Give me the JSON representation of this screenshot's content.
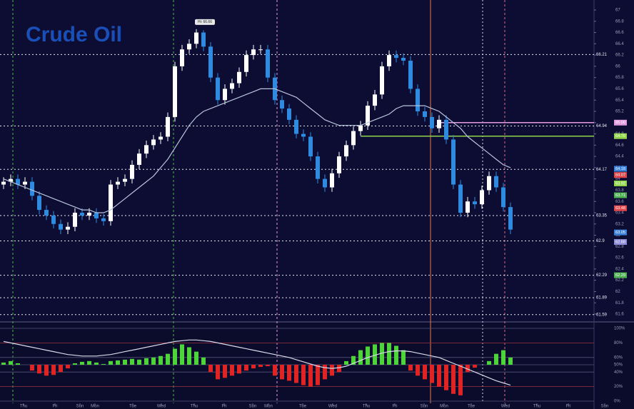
{
  "chart_data": [
    {
      "type": "candlestick",
      "title": "Crude Oil",
      "annotation": "Hi: 66.66",
      "xlim": [
        -0.5,
        88.3
      ],
      "ylim": [
        61.6,
        67
      ],
      "yticks": [
        61.6,
        61.8,
        62,
        62.2,
        62.4,
        62.6,
        62.8,
        63,
        63.2,
        63.4,
        63.6,
        63.8,
        64,
        64.2,
        64.4,
        64.6,
        64.8,
        65,
        65.2,
        65.4,
        65.6,
        65.8,
        66,
        66.2,
        66.4,
        66.6,
        66.8,
        67
      ],
      "levels": [
        66.21,
        64.94,
        64.17,
        63.35,
        62.9,
        62.29,
        61.89,
        61.59
      ],
      "lines": [
        {
          "value": 65.0,
          "color": "#e39be0",
          "from": 61
        },
        {
          "value": 64.76,
          "color": "#8fd44a",
          "from": 50
        }
      ],
      "price_tags": [
        {
          "value": 65.0,
          "label": "65.00",
          "color": "#e39be0"
        },
        {
          "value": 64.76,
          "label": "64.76",
          "color": "#8fd44a"
        },
        {
          "value": 64.18,
          "label": "64.18",
          "color": "#3a7fd8"
        },
        {
          "value": 64.07,
          "label": "64.07",
          "color": "#e0464a"
        },
        {
          "value": 63.92,
          "label": "63.92",
          "color": "#8fd44a"
        },
        {
          "value": 63.71,
          "label": "63.71",
          "color": "#4caf50"
        },
        {
          "value": 63.48,
          "label": "63.48",
          "color": "#e0464a"
        },
        {
          "value": 63.05,
          "label": "63.05",
          "color": "#3a7fd8"
        },
        {
          "value": 62.88,
          "label": "62.88",
          "color": "#8c8cd8"
        },
        {
          "value": 62.29,
          "label": "62.29",
          "color": "#4caf50"
        }
      ],
      "up_color": "#ffffff",
      "down_color": "#2f8be0",
      "ma_color": "#b8c4dc",
      "open": [
        63.9,
        63.95,
        64.0,
        63.9,
        63.95,
        63.7,
        63.45,
        63.35,
        63.2,
        63.1,
        63.15,
        63.4,
        63.35,
        63.4,
        63.3,
        63.25,
        63.9,
        63.95,
        64.0,
        64.25,
        64.45,
        64.6,
        64.7,
        64.75,
        65.1,
        66.0,
        66.3,
        66.4,
        66.6,
        66.35,
        65.8,
        65.4,
        65.6,
        65.7,
        65.9,
        66.2,
        66.3,
        66.3,
        65.8,
        65.4,
        65.25,
        65.05,
        64.8,
        64.75,
        64.4,
        64.0,
        63.85,
        64.1,
        64.4,
        64.6,
        64.85,
        64.95,
        65.3,
        65.5,
        66.0,
        66.2,
        66.15,
        66.1,
        65.6,
        65.2,
        65.1,
        64.9,
        65.05,
        64.7,
        63.9,
        63.4,
        63.6,
        63.55,
        63.8,
        64.05,
        63.85,
        63.5
      ],
      "high": [
        64.03,
        64.08,
        64.08,
        64.03,
        64.03,
        63.78,
        63.53,
        63.43,
        63.28,
        63.23,
        63.48,
        63.48,
        63.48,
        63.48,
        63.38,
        63.98,
        64.03,
        64.08,
        64.33,
        64.53,
        64.68,
        64.78,
        64.83,
        65.18,
        66.08,
        66.38,
        66.48,
        66.66,
        66.64,
        66.43,
        65.88,
        65.68,
        65.78,
        65.98,
        66.28,
        66.38,
        66.38,
        66.38,
        65.88,
        65.48,
        65.33,
        65.13,
        64.88,
        64.83,
        64.48,
        64.08,
        64.18,
        64.48,
        64.68,
        64.93,
        65.03,
        65.38,
        65.58,
        66.08,
        66.28,
        66.28,
        66.23,
        66.18,
        65.68,
        65.28,
        65.18,
        65.13,
        65.13,
        64.78,
        63.98,
        63.68,
        63.68,
        63.88,
        64.13,
        64.13,
        63.93,
        63.58
      ],
      "low": [
        63.82,
        63.87,
        63.82,
        63.82,
        63.62,
        63.37,
        63.27,
        63.12,
        63.02,
        63.02,
        63.07,
        63.27,
        63.27,
        63.22,
        63.17,
        63.17,
        63.82,
        63.87,
        63.92,
        64.17,
        64.37,
        64.52,
        64.62,
        64.67,
        65.02,
        65.92,
        66.22,
        66.32,
        66.27,
        65.72,
        65.32,
        65.32,
        65.52,
        65.62,
        65.82,
        66.12,
        66.22,
        65.72,
        65.32,
        65.17,
        64.97,
        64.72,
        64.67,
        64.32,
        63.92,
        63.77,
        63.77,
        64.02,
        64.32,
        64.52,
        64.77,
        64.87,
        65.22,
        65.42,
        65.92,
        66.07,
        66.02,
        65.52,
        65.12,
        65.02,
        64.82,
        64.82,
        64.62,
        63.82,
        63.32,
        63.32,
        63.47,
        63.47,
        63.72,
        63.77,
        63.42,
        63.02
      ],
      "close": [
        63.95,
        64.0,
        63.9,
        63.95,
        63.7,
        63.45,
        63.35,
        63.2,
        63.1,
        63.15,
        63.4,
        63.35,
        63.4,
        63.3,
        63.25,
        63.9,
        63.95,
        64.0,
        64.25,
        64.45,
        64.6,
        64.7,
        64.75,
        65.1,
        66.0,
        66.3,
        66.4,
        66.6,
        66.35,
        65.8,
        65.4,
        65.6,
        65.7,
        65.9,
        66.2,
        66.3,
        66.3,
        65.8,
        65.4,
        65.25,
        65.05,
        64.8,
        64.75,
        64.4,
        64.0,
        63.85,
        64.1,
        64.4,
        64.6,
        64.85,
        64.95,
        65.3,
        65.5,
        66.0,
        66.2,
        66.15,
        66.1,
        65.6,
        65.2,
        65.1,
        64.9,
        65.05,
        64.7,
        63.9,
        63.4,
        63.6,
        63.55,
        63.8,
        64.05,
        63.85,
        63.5,
        63.1
      ],
      "ma_values": [
        64.0,
        63.95,
        63.9,
        63.85,
        63.8,
        63.75,
        63.7,
        63.65,
        63.6,
        63.55,
        63.5,
        63.45,
        63.45,
        63.4,
        63.4,
        63.45,
        63.55,
        63.65,
        63.75,
        63.85,
        63.95,
        64.05,
        64.2,
        64.35,
        64.55,
        64.75,
        64.95,
        65.1,
        65.2,
        65.25,
        65.3,
        65.35,
        65.4,
        65.45,
        65.5,
        65.55,
        65.6,
        65.6,
        65.6,
        65.55,
        65.5,
        65.45,
        65.35,
        65.25,
        65.15,
        65.05,
        65.0,
        64.95,
        64.95,
        64.95,
        64.95,
        65.0,
        65.05,
        65.1,
        65.15,
        65.25,
        65.3,
        65.3,
        65.3,
        65.3,
        65.25,
        65.2,
        65.1,
        65.0,
        64.9,
        64.75,
        64.65,
        64.55,
        64.45,
        64.35,
        64.25,
        64.2
      ]
    },
    {
      "type": "bar",
      "xlim": [
        -0.5,
        88.3
      ],
      "ylim": [
        0,
        100
      ],
      "baseline": 50,
      "yticks": [
        {
          "value": 100,
          "label": "100%"
        },
        {
          "value": 80,
          "label": "80%"
        },
        {
          "value": 60,
          "label": "60%"
        },
        {
          "value": 50,
          "label": "50%"
        },
        {
          "value": 40,
          "label": "40%"
        },
        {
          "value": 20,
          "label": "20%"
        },
        {
          "value": 0,
          "label": "0%"
        }
      ],
      "xticks": [
        {
          "value": 2.8,
          "label": "Thu"
        },
        {
          "value": 7.2,
          "label": "Fri"
        },
        {
          "value": 10.7,
          "label": "Sun"
        },
        {
          "value": 12.8,
          "label": "Mon"
        },
        {
          "value": 18.1,
          "label": "Tue"
        },
        {
          "value": 22.1,
          "label": "Wed"
        },
        {
          "value": 26.7,
          "label": "Thu"
        },
        {
          "value": 30.9,
          "label": "Fri"
        },
        {
          "value": 34.9,
          "label": "Sun"
        },
        {
          "value": 37.1,
          "label": "Mon"
        },
        {
          "value": 41.9,
          "label": "Tue"
        },
        {
          "value": 46.1,
          "label": "Wed"
        },
        {
          "value": 50.8,
          "label": "Thu"
        },
        {
          "value": 54.8,
          "label": "Fri"
        },
        {
          "value": 58.9,
          "label": "Sun"
        },
        {
          "value": 61.7,
          "label": "Mon"
        },
        {
          "value": 65.5,
          "label": "Tue"
        },
        {
          "value": 70.3,
          "label": "Wed"
        },
        {
          "value": 74.7,
          "label": "Thu"
        },
        {
          "value": 79.1,
          "label": "Fri"
        },
        {
          "value": 84.2,
          "label": "Sun"
        }
      ],
      "up_color": "#4cd43a",
      "down_color": "#e02424",
      "line_color": "#d8d8e8",
      "values": [
        53,
        55,
        52,
        50,
        42,
        38,
        35,
        36,
        40,
        45,
        52,
        54,
        55,
        53,
        51,
        55,
        56,
        57,
        58,
        57,
        59,
        60,
        62,
        65,
        72,
        78,
        74,
        68,
        60,
        40,
        30,
        32,
        35,
        38,
        42,
        45,
        47,
        48,
        35,
        30,
        28,
        25,
        22,
        20,
        22,
        30,
        35,
        40,
        55,
        62,
        70,
        75,
        78,
        80,
        80,
        76,
        70,
        42,
        35,
        30,
        25,
        20,
        15,
        10,
        8,
        40,
        46,
        50,
        55,
        65,
        70,
        60
      ],
      "line_values": [
        82,
        80,
        78,
        76,
        74,
        72,
        70,
        68,
        66,
        64,
        63,
        62,
        62,
        62,
        63,
        64,
        66,
        68,
        70,
        72,
        74,
        76,
        78,
        80,
        82,
        83,
        84,
        84,
        83,
        82,
        80,
        78,
        76,
        74,
        72,
        70,
        68,
        66,
        64,
        62,
        60,
        57,
        54,
        51,
        48,
        46,
        45,
        46,
        48,
        52,
        56,
        60,
        63,
        66,
        68,
        69,
        69,
        68,
        66,
        64,
        62,
        60,
        56,
        52,
        48,
        44,
        40,
        36,
        32,
        28,
        25,
        22
      ]
    }
  ]
}
